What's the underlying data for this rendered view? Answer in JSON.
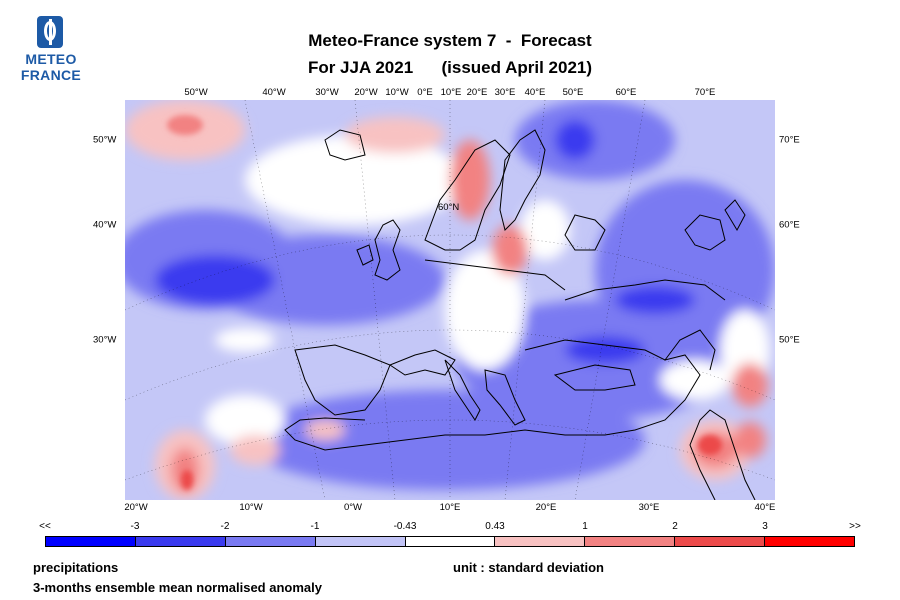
{
  "logo": {
    "line1": "METEO",
    "line2": "FRANCE",
    "color": "#1d5aa6"
  },
  "title": {
    "line1": "Meteo-France system 7  -  Forecast",
    "line2": "For JJA 2021      (issued April 2021)"
  },
  "axes": {
    "top": [
      "50°W",
      "40°W",
      "30°W",
      "20°W",
      "10°W",
      "0°E",
      "10°E",
      "20°E",
      "30°E",
      "40°E",
      "50°E",
      "60°E",
      "70°E"
    ],
    "bottom": [
      "20°W",
      "10°W",
      "0°W",
      "10°E",
      "20°E",
      "30°E",
      "40°E"
    ],
    "left": [
      "50°W",
      "40°W",
      "30°W"
    ],
    "right": [
      "70°E",
      "60°E",
      "50°E"
    ],
    "map_label": "60°N"
  },
  "legend": {
    "labels": [
      "<<",
      "-3",
      "-2",
      "-1",
      "-0.43",
      "0.43",
      "1",
      "2",
      "3",
      ">>"
    ],
    "colors": [
      "#0000ff",
      "#3a3aef",
      "#7a7af2",
      "#c2c4f7",
      "#ffffff",
      "#f8c2c2",
      "#f28282",
      "#ec4a4a",
      "#ff0000"
    ]
  },
  "footer": {
    "variable": "precipitations",
    "description": "3-months ensemble mean normalised anomaly",
    "unit": "unit : standard deviation"
  }
}
